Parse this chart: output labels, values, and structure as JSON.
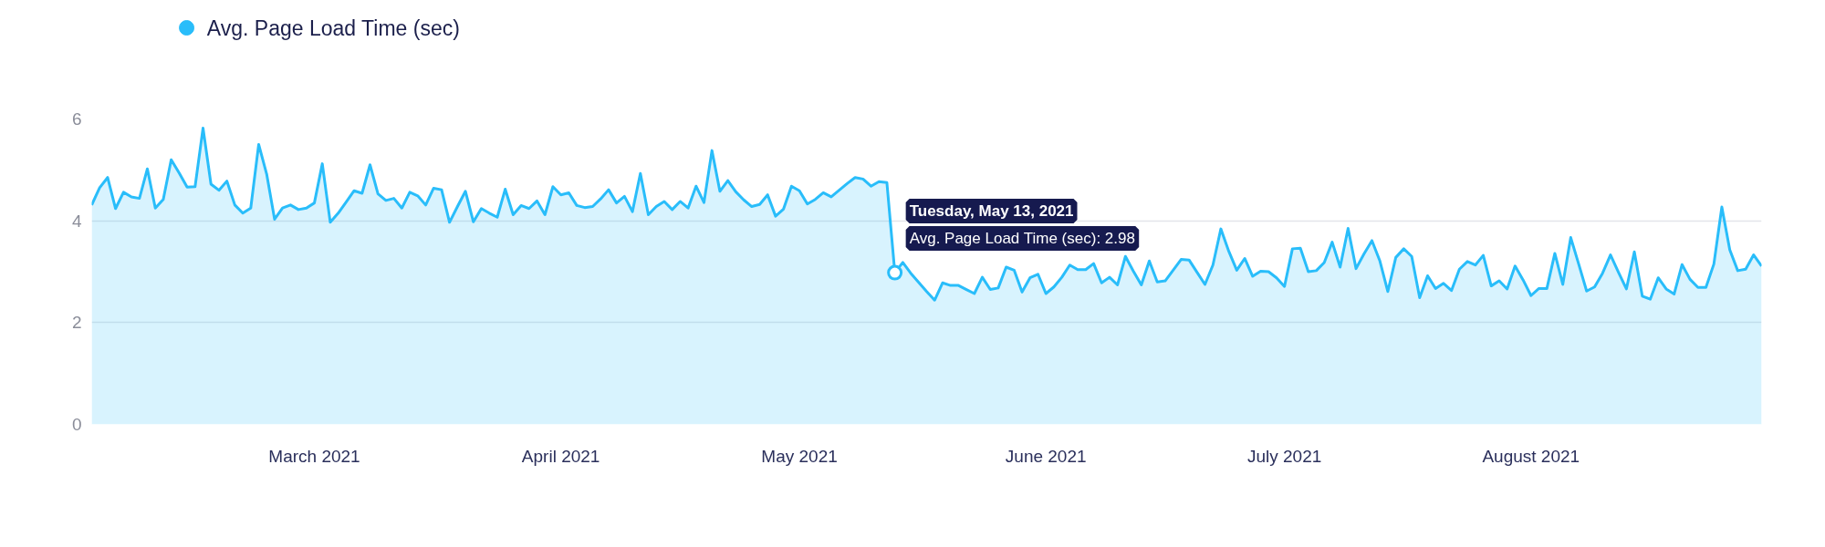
{
  "chart_data": {
    "type": "area",
    "x": [
      "2021-02-01",
      "2021-02-02",
      "2021-02-03",
      "2021-02-04",
      "2021-02-05",
      "2021-02-06",
      "2021-02-07",
      "2021-02-08",
      "2021-02-09",
      "2021-02-10",
      "2021-02-11",
      "2021-02-12",
      "2021-02-13",
      "2021-02-14",
      "2021-02-15",
      "2021-02-16",
      "2021-02-17",
      "2021-02-18",
      "2021-02-19",
      "2021-02-20",
      "2021-02-21",
      "2021-02-22",
      "2021-02-23",
      "2021-02-24",
      "2021-02-25",
      "2021-02-26",
      "2021-02-27",
      "2021-02-28",
      "2021-03-01",
      "2021-03-02",
      "2021-03-03",
      "2021-03-04",
      "2021-03-05",
      "2021-03-06",
      "2021-03-07",
      "2021-03-08",
      "2021-03-09",
      "2021-03-10",
      "2021-03-11",
      "2021-03-12",
      "2021-03-13",
      "2021-03-14",
      "2021-03-15",
      "2021-03-16",
      "2021-03-17",
      "2021-03-18",
      "2021-03-19",
      "2021-03-20",
      "2021-03-21",
      "2021-03-22",
      "2021-03-23",
      "2021-03-24",
      "2021-03-25",
      "2021-03-26",
      "2021-03-27",
      "2021-03-28",
      "2021-03-29",
      "2021-03-30",
      "2021-03-31",
      "2021-04-01",
      "2021-04-02",
      "2021-04-03",
      "2021-04-04",
      "2021-04-05",
      "2021-04-06",
      "2021-04-07",
      "2021-04-08",
      "2021-04-09",
      "2021-04-10",
      "2021-04-11",
      "2021-04-12",
      "2021-04-13",
      "2021-04-14",
      "2021-04-15",
      "2021-04-16",
      "2021-04-17",
      "2021-04-18",
      "2021-04-19",
      "2021-04-20",
      "2021-04-21",
      "2021-04-22",
      "2021-04-23",
      "2021-04-24",
      "2021-04-25",
      "2021-04-26",
      "2021-04-27",
      "2021-04-28",
      "2021-04-29",
      "2021-04-30",
      "2021-05-01",
      "2021-05-02",
      "2021-05-03",
      "2021-05-04",
      "2021-05-05",
      "2021-05-06",
      "2021-05-07",
      "2021-05-08",
      "2021-05-09",
      "2021-05-10",
      "2021-05-11",
      "2021-05-12",
      "2021-05-13",
      "2021-05-14",
      "2021-05-15",
      "2021-05-16",
      "2021-05-17",
      "2021-05-18",
      "2021-05-19",
      "2021-05-20",
      "2021-05-21",
      "2021-05-22",
      "2021-05-23",
      "2021-05-24",
      "2021-05-25",
      "2021-05-26",
      "2021-05-27",
      "2021-05-28",
      "2021-05-29",
      "2021-05-30",
      "2021-05-31",
      "2021-06-01",
      "2021-06-02",
      "2021-06-03",
      "2021-06-04",
      "2021-06-05",
      "2021-06-06",
      "2021-06-07",
      "2021-06-08",
      "2021-06-09",
      "2021-06-10",
      "2021-06-11",
      "2021-06-12",
      "2021-06-13",
      "2021-06-14",
      "2021-06-15",
      "2021-06-16",
      "2021-06-17",
      "2021-06-18",
      "2021-06-19",
      "2021-06-20",
      "2021-06-21",
      "2021-06-22",
      "2021-06-23",
      "2021-06-24",
      "2021-06-25",
      "2021-06-26",
      "2021-06-27",
      "2021-06-28",
      "2021-06-29",
      "2021-06-30",
      "2021-07-01",
      "2021-07-02",
      "2021-07-03",
      "2021-07-04",
      "2021-07-05",
      "2021-07-06",
      "2021-07-07",
      "2021-07-08",
      "2021-07-09",
      "2021-07-10",
      "2021-07-11",
      "2021-07-12",
      "2021-07-13",
      "2021-07-14",
      "2021-07-15",
      "2021-07-16",
      "2021-07-17",
      "2021-07-18",
      "2021-07-19",
      "2021-07-20",
      "2021-07-21",
      "2021-07-22",
      "2021-07-23",
      "2021-07-24",
      "2021-07-25",
      "2021-07-26",
      "2021-07-27",
      "2021-07-28",
      "2021-07-29",
      "2021-07-30",
      "2021-07-31",
      "2021-08-01",
      "2021-08-02",
      "2021-08-03",
      "2021-08-04",
      "2021-08-05",
      "2021-08-06",
      "2021-08-07",
      "2021-08-08",
      "2021-08-09",
      "2021-08-10",
      "2021-08-11",
      "2021-08-12",
      "2021-08-13",
      "2021-08-14",
      "2021-08-15",
      "2021-08-16",
      "2021-08-17",
      "2021-08-18",
      "2021-08-19",
      "2021-08-20",
      "2021-08-21",
      "2021-08-22",
      "2021-08-23",
      "2021-08-24",
      "2021-08-25",
      "2021-08-26",
      "2021-08-27",
      "2021-08-28",
      "2021-08-29",
      "2021-08-30"
    ],
    "series": [
      {
        "name": "Avg. Page Load Time (sec)",
        "color": "#29bdfa",
        "values": [
          4.31,
          4.65,
          4.85,
          4.24,
          4.56,
          4.47,
          4.44,
          5.02,
          4.25,
          4.42,
          5.2,
          4.94,
          4.66,
          4.67,
          5.82,
          4.72,
          4.6,
          4.78,
          4.31,
          4.15,
          4.25,
          5.5,
          4.92,
          4.03,
          4.25,
          4.31,
          4.22,
          4.25,
          4.35,
          5.12,
          3.97,
          4.15,
          4.37,
          4.59,
          4.54,
          5.1,
          4.53,
          4.4,
          4.44,
          4.25,
          4.56,
          4.49,
          4.31,
          4.64,
          4.61,
          3.97,
          4.28,
          4.58,
          3.98,
          4.24,
          4.15,
          4.07,
          4.62,
          4.12,
          4.3,
          4.24,
          4.39,
          4.12,
          4.67,
          4.51,
          4.55,
          4.3,
          4.26,
          4.28,
          4.43,
          4.61,
          4.35,
          4.48,
          4.18,
          4.93,
          4.12,
          4.28,
          4.38,
          4.22,
          4.38,
          4.25,
          4.68,
          4.36,
          5.38,
          4.58,
          4.79,
          4.57,
          4.41,
          4.28,
          4.32,
          4.51,
          4.09,
          4.23,
          4.68,
          4.59,
          4.33,
          4.42,
          4.55,
          4.47,
          4.6,
          4.73,
          4.85,
          4.82,
          4.68,
          4.77,
          4.75,
          2.98,
          3.18,
          2.97,
          2.79,
          2.61,
          2.44,
          2.78,
          2.73,
          2.73,
          2.65,
          2.57,
          2.89,
          2.65,
          2.68,
          3.09,
          3.03,
          2.6,
          2.88,
          2.95,
          2.57,
          2.7,
          2.89,
          3.13,
          3.04,
          3.04,
          3.16,
          2.78,
          2.89,
          2.74,
          3.3,
          3.01,
          2.74,
          3.21,
          2.8,
          2.82,
          3.03,
          3.24,
          3.23,
          2.99,
          2.75,
          3.13,
          3.84,
          3.4,
          3.03,
          3.26,
          2.91,
          3.01,
          3.0,
          2.88,
          2.71,
          3.45,
          3.46,
          3.0,
          3.02,
          3.18,
          3.58,
          3.09,
          3.85,
          3.06,
          3.35,
          3.61,
          3.21,
          2.61,
          3.28,
          3.45,
          3.3,
          2.49,
          2.92,
          2.67,
          2.77,
          2.63,
          3.05,
          3.2,
          3.13,
          3.32,
          2.72,
          2.82,
          2.66,
          3.11,
          2.84,
          2.53,
          2.67,
          2.67,
          3.36,
          2.75,
          3.67,
          3.15,
          2.62,
          2.7,
          2.97,
          3.33,
          2.99,
          2.66,
          3.39,
          2.52,
          2.46,
          2.88,
          2.66,
          2.56,
          3.14,
          2.85,
          2.69,
          2.69,
          3.15,
          4.27,
          3.43,
          3.02,
          3.05,
          3.33,
          3.11
        ]
      }
    ],
    "xlim": [
      "2021-02-01",
      "2021-08-30"
    ],
    "xticks": [
      {
        "value": "2021-03-01",
        "label": "March 2021"
      },
      {
        "value": "2021-04-01",
        "label": "April 2021"
      },
      {
        "value": "2021-05-01",
        "label": "May 2021"
      },
      {
        "value": "2021-06-01",
        "label": "June 2021"
      },
      {
        "value": "2021-07-01",
        "label": "July 2021"
      },
      {
        "value": "2021-08-01",
        "label": "August 2021"
      }
    ],
    "ylim": [
      0,
      6
    ],
    "yticks": [
      0,
      2,
      4,
      6
    ],
    "grid": "y",
    "legend": "top left",
    "annotations": [
      {
        "text": "Tuesday, May 13, 2021\nAvg. Page Load Time (sec): 2.98",
        "x": "2021-05-13",
        "y": 2.98
      }
    ]
  }
}
